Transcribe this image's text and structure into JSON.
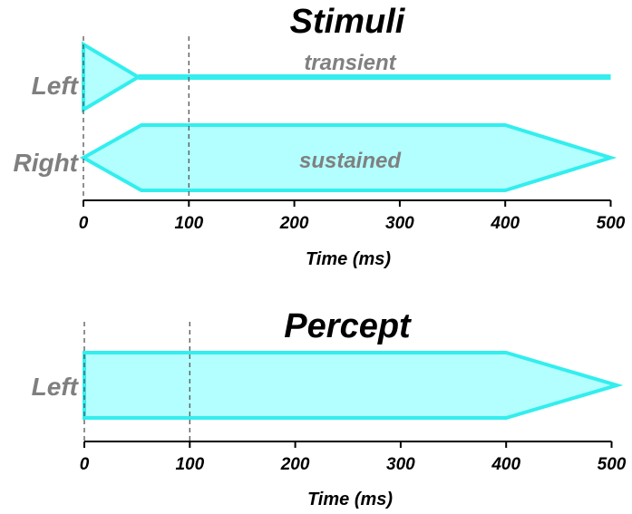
{
  "stimuli": {
    "title": "Stimuli",
    "rows": [
      {
        "label": "Left",
        "kind": "transient",
        "text": "transient",
        "onset_ms": 0,
        "peak_end_ms": 52,
        "offset_ms": 500
      },
      {
        "label": "Right",
        "kind": "sustained",
        "text": "sustained",
        "onset_ms": 0,
        "rise_end_ms": 55,
        "fall_start_ms": 400,
        "offset_ms": 500
      }
    ],
    "axis": {
      "title": "Time (ms)",
      "ticks": [
        "0",
        "100",
        "200",
        "300",
        "400",
        "500"
      ]
    },
    "guides_ms": [
      0,
      100
    ]
  },
  "percept": {
    "title": "Percept",
    "rows": [
      {
        "label": "Left",
        "kind": "sustained",
        "text": "",
        "onset_ms": 0,
        "rise_end_ms": 0,
        "fall_start_ms": 400,
        "offset_ms": 505
      }
    ],
    "axis": {
      "title": "Time (ms)",
      "ticks": [
        "0",
        "100",
        "200",
        "300",
        "400",
        "500"
      ]
    },
    "guides_ms": [
      0,
      100
    ]
  },
  "colors": {
    "fill": "#b3ffff",
    "stroke": "#33eeee",
    "label": "#7f7f7f"
  }
}
